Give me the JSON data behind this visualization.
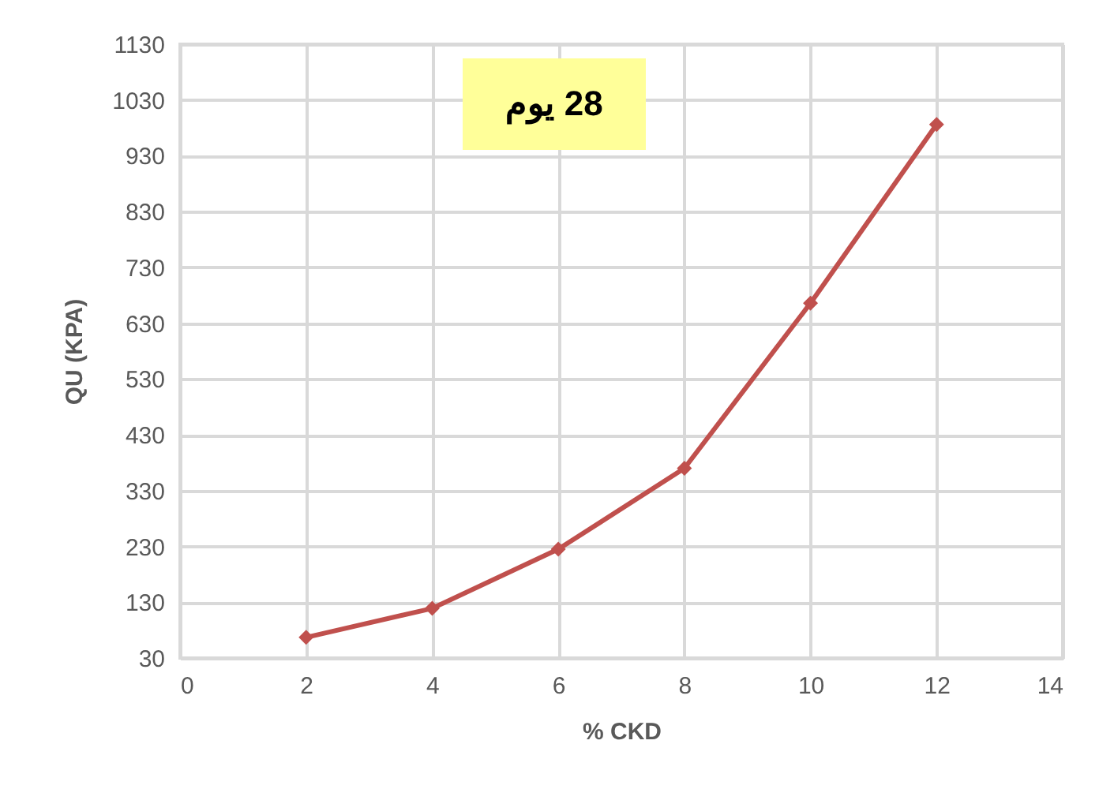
{
  "chart_data": {
    "type": "line",
    "xlabel": "% CKD",
    "ylabel": "QU (KPA)",
    "annotations": [
      "28 يوم"
    ],
    "x": [
      2,
      4,
      6,
      8,
      10,
      12
    ],
    "series": [
      {
        "color": "#c0504d",
        "values": [
          67,
          119,
          225,
          370,
          666,
          986
        ]
      }
    ],
    "xlim": [
      0,
      14
    ],
    "xticks": [
      0,
      2,
      4,
      6,
      8,
      10,
      12,
      14
    ],
    "ylim": [
      30,
      1130
    ],
    "yticks": [
      30,
      130,
      230,
      330,
      430,
      530,
      630,
      730,
      830,
      930,
      1030,
      1130
    ],
    "grid": true,
    "marker": "diamond",
    "line_style": "solid"
  }
}
